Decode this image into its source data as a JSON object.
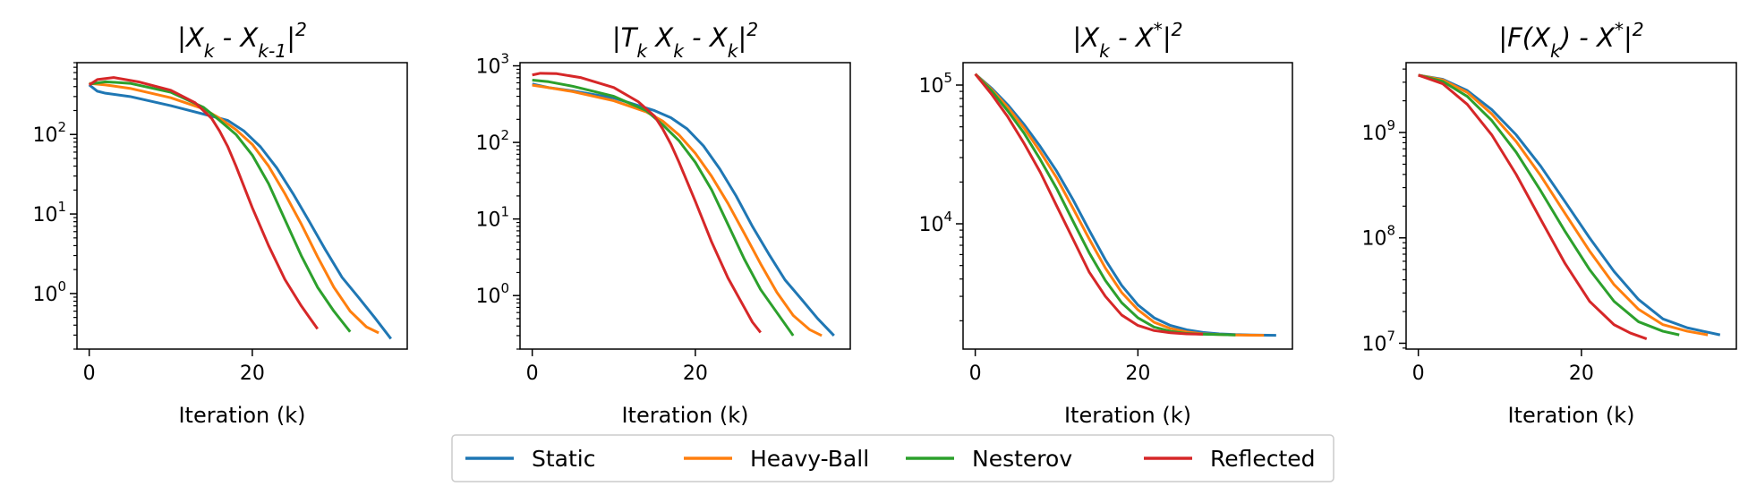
{
  "legend": [
    "Static",
    "Heavy-Ball",
    "Nesterov",
    "Reflected"
  ],
  "colors": {
    "Static": "#1f77b4",
    "Heavy-Ball": "#ff7f0e",
    "Nesterov": "#2ca02c",
    "Reflected": "#d62728"
  },
  "chart_data": [
    {
      "type": "line",
      "title": "|X_k - X_{k-1}|^2",
      "xlabel": "Iteration (k)",
      "yscale": "log",
      "xlim": [
        -1.5,
        39
      ],
      "ylim": [
        0.2,
        800
      ],
      "xticks": [
        0,
        20
      ],
      "yticks": [
        1,
        10,
        100
      ],
      "yticklabels": [
        "10^0",
        "10^1",
        "10^2"
      ],
      "grid": false,
      "series": [
        {
          "name": "Static",
          "x": [
            0,
            1,
            2,
            5,
            10,
            15,
            17,
            19,
            21,
            23,
            25,
            27,
            29,
            31,
            33,
            35,
            37
          ],
          "y": [
            420,
            350,
            330,
            300,
            230,
            170,
            150,
            110,
            70,
            38,
            18,
            8,
            3.5,
            1.6,
            0.9,
            0.5,
            0.27
          ]
        },
        {
          "name": "Heavy-Ball",
          "x": [
            0,
            2,
            5,
            10,
            14,
            16,
            18,
            20,
            22,
            24,
            26,
            28,
            30,
            32,
            34,
            35.5
          ],
          "y": [
            440,
            420,
            380,
            290,
            210,
            160,
            115,
            75,
            40,
            18,
            7.5,
            2.9,
            1.2,
            0.6,
            0.38,
            0.32
          ]
        },
        {
          "name": "Nesterov",
          "x": [
            0,
            2,
            5,
            10,
            14,
            16,
            18,
            20,
            22,
            24,
            26,
            28,
            30,
            32
          ],
          "y": [
            430,
            460,
            440,
            340,
            220,
            150,
            100,
            55,
            24,
            8.5,
            3,
            1.2,
            0.6,
            0.33
          ]
        },
        {
          "name": "Reflected",
          "x": [
            0,
            1,
            3,
            6,
            10,
            13,
            15,
            16,
            17,
            18,
            20,
            22,
            24,
            26,
            27,
            28
          ],
          "y": [
            420,
            490,
            520,
            460,
            360,
            250,
            160,
            110,
            70,
            40,
            12,
            4,
            1.5,
            0.7,
            0.5,
            0.36
          ]
        }
      ]
    },
    {
      "type": "line",
      "title": "|T_k X_k - X_k|^2",
      "xlabel": "Iteration (k)",
      "yscale": "log",
      "xlim": [
        -1.5,
        39
      ],
      "ylim": [
        0.2,
        1100
      ],
      "xticks": [
        0,
        20
      ],
      "yticks": [
        1,
        10,
        100,
        1000
      ],
      "yticklabels": [
        "10^0",
        "10^1",
        "10^2",
        "10^3"
      ],
      "grid": false,
      "series": [
        {
          "name": "Static",
          "x": [
            0,
            2,
            5,
            10,
            15,
            17,
            19,
            21,
            23,
            25,
            27,
            29,
            31,
            33,
            35,
            37
          ],
          "y": [
            580,
            520,
            470,
            380,
            260,
            210,
            150,
            90,
            45,
            20,
            8,
            3.5,
            1.6,
            0.9,
            0.5,
            0.3
          ]
        },
        {
          "name": "Heavy-Ball",
          "x": [
            0,
            2,
            5,
            10,
            14,
            16,
            18,
            20,
            22,
            24,
            26,
            28,
            30,
            32,
            34,
            35.5
          ],
          "y": [
            560,
            520,
            460,
            350,
            250,
            190,
            125,
            72,
            36,
            16,
            6.5,
            2.6,
            1.1,
            0.55,
            0.36,
            0.3
          ]
        },
        {
          "name": "Nesterov",
          "x": [
            0,
            2,
            5,
            10,
            14,
            16,
            18,
            20,
            22,
            24,
            26,
            28,
            30,
            32
          ],
          "y": [
            650,
            620,
            540,
            400,
            260,
            170,
            105,
            55,
            24,
            8.5,
            3,
            1.2,
            0.6,
            0.3
          ]
        },
        {
          "name": "Reflected",
          "x": [
            0,
            1,
            3,
            6,
            10,
            13,
            15,
            16,
            17,
            18,
            20,
            22,
            24,
            26,
            27,
            28
          ],
          "y": [
            760,
            800,
            790,
            700,
            520,
            340,
            220,
            150,
            95,
            55,
            17,
            5,
            1.7,
            0.7,
            0.45,
            0.33
          ]
        }
      ]
    },
    {
      "type": "line",
      "title": "|X_k - X^*|^2",
      "xlabel": "Iteration (k)",
      "yscale": "log",
      "xlim": [
        -1.5,
        39
      ],
      "ylim": [
        1250,
        145000
      ],
      "xticks": [
        0,
        20
      ],
      "yticks": [
        10000,
        100000
      ],
      "yticklabels": [
        "10^4",
        "10^5"
      ],
      "grid": false,
      "series": [
        {
          "name": "Static",
          "x": [
            0,
            2,
            4,
            6,
            8,
            10,
            12,
            14,
            16,
            18,
            20,
            22,
            24,
            26,
            28,
            30,
            32,
            34,
            37
          ],
          "y": [
            120000,
            95000,
            72000,
            52000,
            36000,
            24000,
            15000,
            9000,
            5500,
            3600,
            2600,
            2100,
            1850,
            1720,
            1650,
            1610,
            1590,
            1580,
            1570
          ]
        },
        {
          "name": "Heavy-Ball",
          "x": [
            0,
            2,
            4,
            6,
            8,
            10,
            12,
            14,
            16,
            18,
            20,
            22,
            24,
            26,
            28,
            30,
            32,
            35.5
          ],
          "y": [
            120000,
            93000,
            69000,
            49000,
            33000,
            21500,
            13000,
            7800,
            4800,
            3200,
            2400,
            1950,
            1760,
            1660,
            1610,
            1590,
            1580,
            1570
          ]
        },
        {
          "name": "Nesterov",
          "x": [
            0,
            2,
            4,
            6,
            8,
            10,
            12,
            14,
            16,
            18,
            20,
            22,
            24,
            26,
            28,
            30,
            32
          ],
          "y": [
            120000,
            91000,
            65000,
            45000,
            29000,
            18000,
            10500,
            6200,
            3900,
            2700,
            2100,
            1800,
            1680,
            1620,
            1600,
            1590,
            1580
          ]
        },
        {
          "name": "Reflected",
          "x": [
            0,
            2,
            4,
            6,
            8,
            10,
            12,
            14,
            16,
            18,
            20,
            22,
            24,
            26,
            28
          ],
          "y": [
            120000,
            86000,
            59000,
            38000,
            23500,
            13500,
            7800,
            4500,
            3000,
            2200,
            1850,
            1700,
            1640,
            1610,
            1600
          ]
        }
      ]
    },
    {
      "type": "line",
      "title": "|F(X_k) - X^*|^2",
      "xlabel": "Iteration (k)",
      "yscale": "log",
      "xlim": [
        -1.5,
        39
      ],
      "ylim": [
        8800000,
        4600000000
      ],
      "xticks": [
        0,
        20
      ],
      "yticks": [
        10000000,
        100000000,
        1000000000
      ],
      "yticklabels": [
        "10^7",
        "10^8",
        "10^9"
      ],
      "grid": false,
      "series": [
        {
          "name": "Static",
          "x": [
            0,
            3,
            6,
            9,
            12,
            15,
            18,
            21,
            24,
            27,
            30,
            33,
            37
          ],
          "y": [
            3500000000,
            3200000000,
            2500000000,
            1650000000,
            950000000,
            480000000,
            220000000,
            100000000,
            48000000,
            26000000,
            17000000,
            14000000,
            12000000
          ]
        },
        {
          "name": "Heavy-Ball",
          "x": [
            0,
            3,
            6,
            9,
            12,
            15,
            18,
            21,
            24,
            27,
            30,
            33,
            35.5
          ],
          "y": [
            3500000000,
            3150000000,
            2400000000,
            1500000000,
            820000000,
            390000000,
            170000000,
            75000000,
            36000000,
            21000000,
            15000000,
            13000000,
            12000000
          ]
        },
        {
          "name": "Nesterov",
          "x": [
            0,
            3,
            6,
            9,
            12,
            15,
            18,
            21,
            24,
            27,
            30,
            32
          ],
          "y": [
            3500000000,
            3050000000,
            2200000000,
            1300000000,
            650000000,
            280000000,
            115000000,
            50000000,
            25000000,
            16000000,
            13000000,
            12000000
          ]
        },
        {
          "name": "Reflected",
          "x": [
            0,
            3,
            6,
            9,
            12,
            15,
            18,
            21,
            24,
            26,
            28
          ],
          "y": [
            3500000000,
            2900000000,
            1850000000,
            950000000,
            400000000,
            150000000,
            57000000,
            25000000,
            15000000,
            12500000,
            11000000
          ]
        }
      ]
    }
  ]
}
